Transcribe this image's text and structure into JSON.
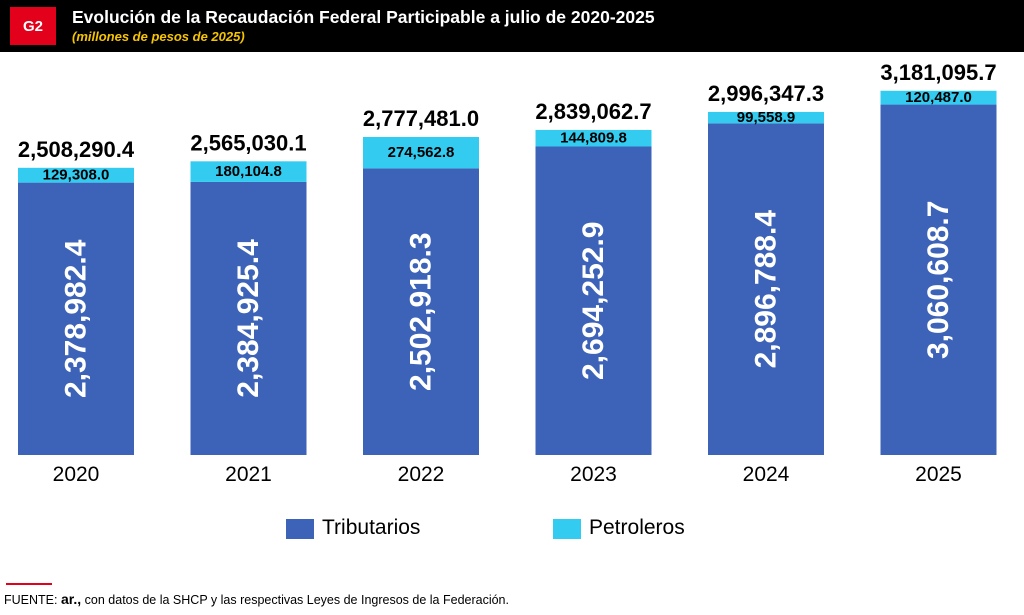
{
  "header": {
    "badge": "G2",
    "title": "Evolución de la Recaudación Federal Participable a julio de 2020-2025",
    "subtitle": "(millones de pesos de 2025)"
  },
  "chart_data": {
    "type": "bar",
    "stacked": true,
    "categories": [
      "2020",
      "2021",
      "2022",
      "2023",
      "2024",
      "2025"
    ],
    "series": [
      {
        "name": "Tributarios",
        "color": "#3d63b8",
        "values": [
          2378982.4,
          2384925.4,
          2502918.3,
          2694252.9,
          2896788.4,
          3060608.7
        ],
        "labels": [
          "2,378,982.4",
          "2,384,925.4",
          "2,502,918.3",
          "2,694,252.9",
          "2,896,788.4",
          "3,060,608.7"
        ]
      },
      {
        "name": "Petroleros",
        "color": "#33ccf0",
        "values": [
          129308.0,
          180104.8,
          274562.8,
          144809.8,
          99558.9,
          120487.0
        ],
        "labels": [
          "129,308.0",
          "180,104.8",
          "274,562.8",
          "144,809.8",
          "99,558.9",
          "120,487.0"
        ]
      }
    ],
    "totals": [
      2508290.4,
      2565030.1,
      2777481.0,
      2839062.7,
      2996347.3,
      3181095.7
    ],
    "total_labels": [
      "2,508,290.4",
      "2,565,030.1",
      "2,777,481.0",
      "2,839,062.7",
      "2,996,347.3",
      "3,181,095.7"
    ],
    "legend_position": "bottom",
    "grid": false
  },
  "source": {
    "prefix": "FUENTE: ",
    "brand": "ar.,",
    "text": " con datos de la SHCP y las respectivas Leyes de Ingresos de la Federación."
  }
}
